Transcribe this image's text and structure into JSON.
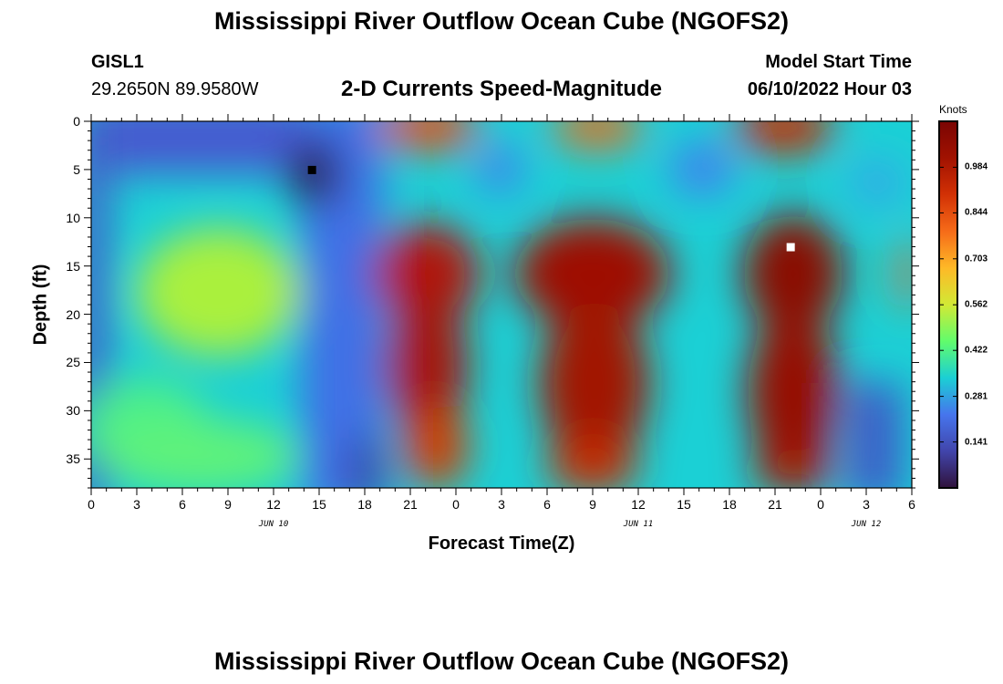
{
  "header": {
    "title": "Mississippi River Outflow Ocean Cube (NGOFS2)",
    "station": "GISL1",
    "coords": "29.2650N  89.9580W",
    "subtitle": "2-D Currents Speed-Magnitude",
    "start_label": "Model Start Time",
    "start_value": "06/10/2022 Hour 03"
  },
  "footer": {
    "title": "Mississippi River Outflow Ocean Cube (NGOFS2)"
  },
  "chart_data": {
    "type": "heatmap",
    "xlabel": "Forecast Time(Z)",
    "ylabel": "Depth (ft)",
    "x_range_hours": [
      0,
      54
    ],
    "y_range_ft": [
      0,
      38
    ],
    "x_ticks": [
      "0",
      "3",
      "6",
      "9",
      "12",
      "15",
      "18",
      "21",
      "0",
      "3",
      "6",
      "9",
      "12",
      "15",
      "18",
      "21",
      "0",
      "3",
      "6"
    ],
    "y_ticks": [
      "0",
      "5",
      "10",
      "15",
      "20",
      "25",
      "30",
      "35"
    ],
    "date_labels": [
      {
        "label": "JUN 10",
        "hour": 12
      },
      {
        "label": "JUN 11",
        "hour": 36
      },
      {
        "label": "JUN 12",
        "hour": 51
      }
    ],
    "colorbar": {
      "title": "Knots",
      "ticks": [
        "0.141",
        "0.281",
        "0.422",
        "0.562",
        "0.703",
        "0.844",
        "0.984"
      ],
      "tick_values": [
        0.141,
        0.281,
        0.422,
        0.562,
        0.703,
        0.844,
        0.984
      ],
      "range": [
        0.0,
        1.125
      ]
    },
    "markers": [
      {
        "type": "min",
        "hour": 14.5,
        "depth_ft": 5,
        "color": "#000000"
      },
      {
        "type": "max",
        "hour": 46,
        "depth_ft": 13,
        "color": "#ffffff"
      }
    ]
  }
}
